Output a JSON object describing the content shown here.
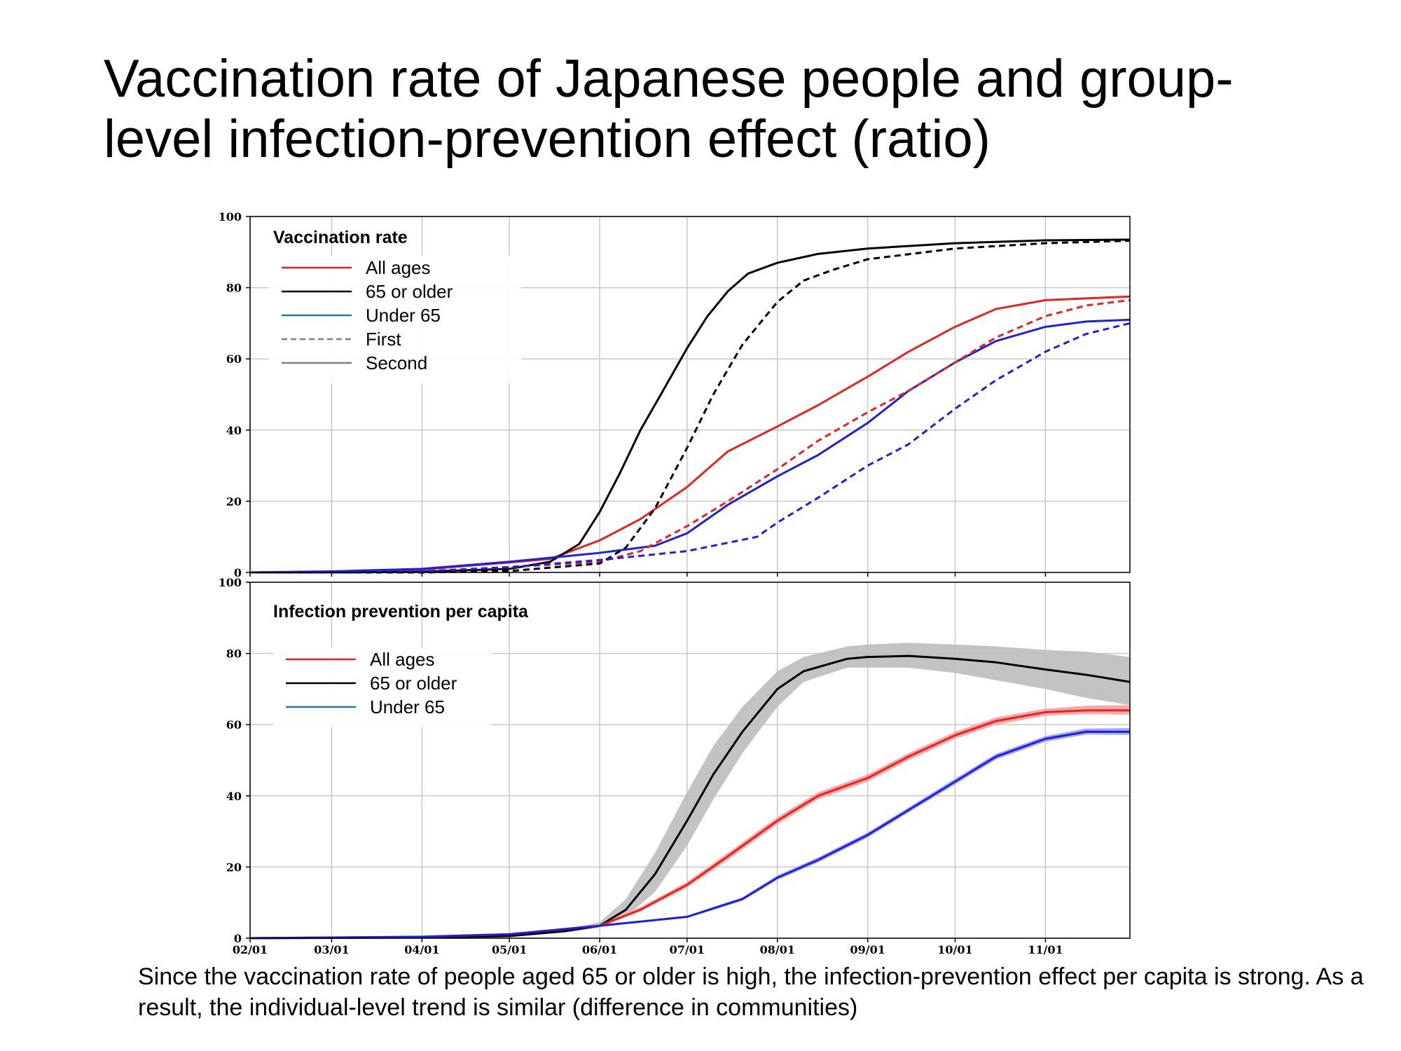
{
  "title": "Vaccination rate of Japanese people and group-\nlevel infection-prevention effect (ratio)",
  "caption": "Since the vaccination rate of people aged 65 or older is high, the infection-prevention effect per capita is strong. As a result, the individual-level trend is similar (difference in communities)",
  "colors": {
    "all_ages": "#e8231f",
    "older": "#000000",
    "under65": "#1f1fe0",
    "band_older": "#bdbdbd",
    "band_all": "#f7a0a0",
    "band_under": "#9d9df0",
    "grid": "#c8c8c8",
    "legend_all": "#d62728",
    "legend_under": "#1f77b4",
    "legend_style": "#7f7f7f"
  },
  "x_ticks": [
    "02/01",
    "03/01",
    "04/01",
    "05/01",
    "06/01",
    "07/01",
    "08/01",
    "09/01",
    "10/01",
    "11/01"
  ],
  "chart_data": [
    {
      "type": "line",
      "title": "Vaccination rate",
      "xlabel": "",
      "ylabel": "",
      "xlim": [
        "02/01",
        "11/30"
      ],
      "ylim": [
        0,
        100
      ],
      "y_ticks": [
        0,
        20,
        40,
        60,
        80,
        100
      ],
      "grid": true,
      "legend": {
        "placement": "top-left",
        "entries": [
          {
            "label": "All ages",
            "style": "solid",
            "color_key": "legend_all"
          },
          {
            "label": "65 or older",
            "style": "solid",
            "color_key": "older"
          },
          {
            "label": "Under 65",
            "style": "solid",
            "color_key": "legend_under"
          },
          {
            "label": "First",
            "style": "dashed",
            "color_key": "legend_style"
          },
          {
            "label": "Second",
            "style": "solid",
            "color_key": "legend_style"
          }
        ]
      },
      "series": [
        {
          "group": "All ages",
          "dose": "Second",
          "dash": false,
          "color_key": "all_ages",
          "points": [
            [
              "02/01",
              0
            ],
            [
              "03/01",
              0.2
            ],
            [
              "04/01",
              0.8
            ],
            [
              "05/01",
              2.8
            ],
            [
              "05/15",
              3.8
            ],
            [
              "06/01",
              9
            ],
            [
              "06/15",
              15
            ],
            [
              "07/01",
              24
            ],
            [
              "07/15",
              34
            ],
            [
              "08/01",
              41
            ],
            [
              "08/15",
              47
            ],
            [
              "09/01",
              55
            ],
            [
              "09/15",
              62
            ],
            [
              "10/01",
              69
            ],
            [
              "10/15",
              74
            ],
            [
              "11/01",
              76.5
            ],
            [
              "11/15",
              77
            ],
            [
              "11/30",
              77.5
            ]
          ]
        },
        {
          "group": "65 or older",
          "dose": "Second",
          "dash": false,
          "color_key": "older",
          "points": [
            [
              "02/01",
              0
            ],
            [
              "03/01",
              0
            ],
            [
              "04/01",
              0.2
            ],
            [
              "05/01",
              1
            ],
            [
              "05/15",
              3
            ],
            [
              "05/25",
              8
            ],
            [
              "06/01",
              17
            ],
            [
              "06/08",
              28
            ],
            [
              "06/15",
              40
            ],
            [
              "06/22",
              50
            ],
            [
              "07/01",
              63
            ],
            [
              "07/08",
              72
            ],
            [
              "07/15",
              79
            ],
            [
              "07/22",
              84
            ],
            [
              "08/01",
              87
            ],
            [
              "08/15",
              89.5
            ],
            [
              "09/01",
              91
            ],
            [
              "10/01",
              92.5
            ],
            [
              "11/01",
              93.3
            ],
            [
              "11/30",
              93.5
            ]
          ]
        },
        {
          "group": "Under 65",
          "dose": "Second",
          "dash": false,
          "color_key": "under65",
          "points": [
            [
              "02/01",
              0
            ],
            [
              "03/01",
              0.3
            ],
            [
              "04/01",
              1
            ],
            [
              "05/01",
              3
            ],
            [
              "06/01",
              5.5
            ],
            [
              "06/20",
              7.5
            ],
            [
              "07/01",
              11
            ],
            [
              "07/15",
              19
            ],
            [
              "08/01",
              27
            ],
            [
              "08/15",
              33
            ],
            [
              "09/01",
              42
            ],
            [
              "09/15",
              51
            ],
            [
              "10/01",
              59
            ],
            [
              "10/15",
              65
            ],
            [
              "11/01",
              69
            ],
            [
              "11/15",
              70.5
            ],
            [
              "11/30",
              71
            ]
          ]
        },
        {
          "group": "All ages",
          "dose": "First",
          "dash": true,
          "color_key": "all_ages",
          "points": [
            [
              "02/01",
              0
            ],
            [
              "03/01",
              0
            ],
            [
              "04/01",
              0.3
            ],
            [
              "05/01",
              1.5
            ],
            [
              "06/01",
              3
            ],
            [
              "06/15",
              6
            ],
            [
              "07/01",
              13
            ],
            [
              "07/15",
              20
            ],
            [
              "08/01",
              29
            ],
            [
              "08/15",
              37
            ],
            [
              "09/01",
              45
            ],
            [
              "09/15",
              51
            ],
            [
              "10/01",
              59
            ],
            [
              "10/15",
              66
            ],
            [
              "11/01",
              72
            ],
            [
              "11/15",
              75
            ],
            [
              "11/30",
              76.5
            ]
          ]
        },
        {
          "group": "65 or older",
          "dose": "First",
          "dash": true,
          "color_key": "older",
          "points": [
            [
              "02/01",
              0
            ],
            [
              "03/01",
              0
            ],
            [
              "04/01",
              0
            ],
            [
              "05/01",
              0.4
            ],
            [
              "06/01",
              2.5
            ],
            [
              "06/10",
              7
            ],
            [
              "06/20",
              18
            ],
            [
              "07/01",
              35
            ],
            [
              "07/10",
              50
            ],
            [
              "07/20",
              64
            ],
            [
              "08/01",
              76
            ],
            [
              "08/10",
              82
            ],
            [
              "08/20",
              85
            ],
            [
              "09/01",
              88
            ],
            [
              "10/01",
              91
            ],
            [
              "11/01",
              92.5
            ],
            [
              "11/30",
              93.2
            ]
          ]
        },
        {
          "group": "Under 65",
          "dose": "First",
          "dash": true,
          "color_key": "under65",
          "points": [
            [
              "02/01",
              0
            ],
            [
              "03/01",
              0
            ],
            [
              "04/01",
              0.3
            ],
            [
              "05/01",
              1.5
            ],
            [
              "06/01",
              3.5
            ],
            [
              "07/01",
              6
            ],
            [
              "07/25",
              10
            ],
            [
              "08/01",
              14
            ],
            [
              "08/15",
              21
            ],
            [
              "09/01",
              30
            ],
            [
              "09/15",
              36
            ],
            [
              "10/01",
              46
            ],
            [
              "10/15",
              54
            ],
            [
              "11/01",
              62
            ],
            [
              "11/15",
              67
            ],
            [
              "11/30",
              70
            ]
          ]
        }
      ]
    },
    {
      "type": "area",
      "title": "Infection prevention per capita",
      "xlabel": "",
      "ylabel": "",
      "xlim": [
        "02/01",
        "11/30"
      ],
      "ylim": [
        0,
        100
      ],
      "y_ticks": [
        0,
        20,
        40,
        60,
        80,
        100
      ],
      "grid": true,
      "legend": {
        "placement": "top-left",
        "entries": [
          {
            "label": "All ages",
            "style": "solid",
            "color_key": "legend_all"
          },
          {
            "label": "65 or older",
            "style": "solid",
            "color_key": "older"
          },
          {
            "label": "Under 65",
            "style": "solid",
            "color_key": "legend_under"
          }
        ]
      },
      "series": [
        {
          "group": "65 or older",
          "color_key": "older",
          "band_key": "band_older",
          "points": [
            [
              "02/01",
              0,
              0,
              0
            ],
            [
              "04/01",
              0.2,
              0.1,
              0.3
            ],
            [
              "05/01",
              0.6,
              0.4,
              0.9
            ],
            [
              "05/20",
              2,
              1.5,
              2.5
            ],
            [
              "06/01",
              3.5,
              3,
              4.5
            ],
            [
              "06/10",
              8,
              6,
              11
            ],
            [
              "06/20",
              18,
              13,
              24
            ],
            [
              "07/01",
              33,
              26,
              41
            ],
            [
              "07/10",
              46,
              39,
              54
            ],
            [
              "07/20",
              58,
              52,
              65
            ],
            [
              "08/01",
              70,
              65,
              75
            ],
            [
              "08/10",
              75,
              72,
              79
            ],
            [
              "08/25",
              78.5,
              76,
              82
            ],
            [
              "09/01",
              79,
              76,
              82.5
            ],
            [
              "09/15",
              79.3,
              76,
              83
            ],
            [
              "10/01",
              78.5,
              74.5,
              82.5
            ],
            [
              "10/15",
              77.5,
              72.5,
              82
            ],
            [
              "11/01",
              75.5,
              70,
              81
            ],
            [
              "11/15",
              74,
              67.5,
              80.5
            ],
            [
              "11/30",
              72,
              65.5,
              79
            ]
          ]
        },
        {
          "group": "All ages",
          "color_key": "all_ages",
          "band_key": "band_all",
          "points": [
            [
              "02/01",
              0,
              0,
              0
            ],
            [
              "04/01",
              0.4,
              0.3,
              0.5
            ],
            [
              "05/01",
              1.1,
              1,
              1.3
            ],
            [
              "06/01",
              3.5,
              3.2,
              3.8
            ],
            [
              "06/15",
              8,
              7.5,
              8.7
            ],
            [
              "07/01",
              15,
              14.2,
              15.8
            ],
            [
              "07/15",
              23,
              22,
              24
            ],
            [
              "08/01",
              33,
              32,
              34
            ],
            [
              "08/15",
              40,
              39,
              41
            ],
            [
              "09/01",
              45,
              44,
              46
            ],
            [
              "09/15",
              51,
              50,
              52
            ],
            [
              "10/01",
              57,
              56,
              58
            ],
            [
              "10/15",
              61,
              60,
              62
            ],
            [
              "11/01",
              63.5,
              62.5,
              64.5
            ],
            [
              "11/15",
              64,
              63,
              65.3
            ],
            [
              "11/30",
              64,
              62.8,
              65.5
            ]
          ]
        },
        {
          "group": "Under 65",
          "color_key": "under65",
          "band_key": "band_under",
          "points": [
            [
              "02/01",
              0,
              0,
              0
            ],
            [
              "04/01",
              0.4,
              0.3,
              0.5
            ],
            [
              "05/01",
              1.1,
              1,
              1.3
            ],
            [
              "06/01",
              3.5,
              3.2,
              3.8
            ],
            [
              "07/01",
              6,
              5.7,
              6.3
            ],
            [
              "07/20",
              11,
              10.5,
              11.5
            ],
            [
              "08/01",
              17,
              16.4,
              17.6
            ],
            [
              "08/15",
              22,
              21.3,
              22.7
            ],
            [
              "09/01",
              29,
              28.3,
              29.7
            ],
            [
              "09/15",
              36,
              35.3,
              36.7
            ],
            [
              "10/01",
              44,
              43.2,
              44.8
            ],
            [
              "10/15",
              51,
              50.2,
              51.8
            ],
            [
              "11/01",
              56,
              55.2,
              56.8
            ],
            [
              "11/15",
              58,
              57.2,
              58.9
            ],
            [
              "11/30",
              58,
              57.1,
              59
            ]
          ]
        }
      ]
    }
  ]
}
